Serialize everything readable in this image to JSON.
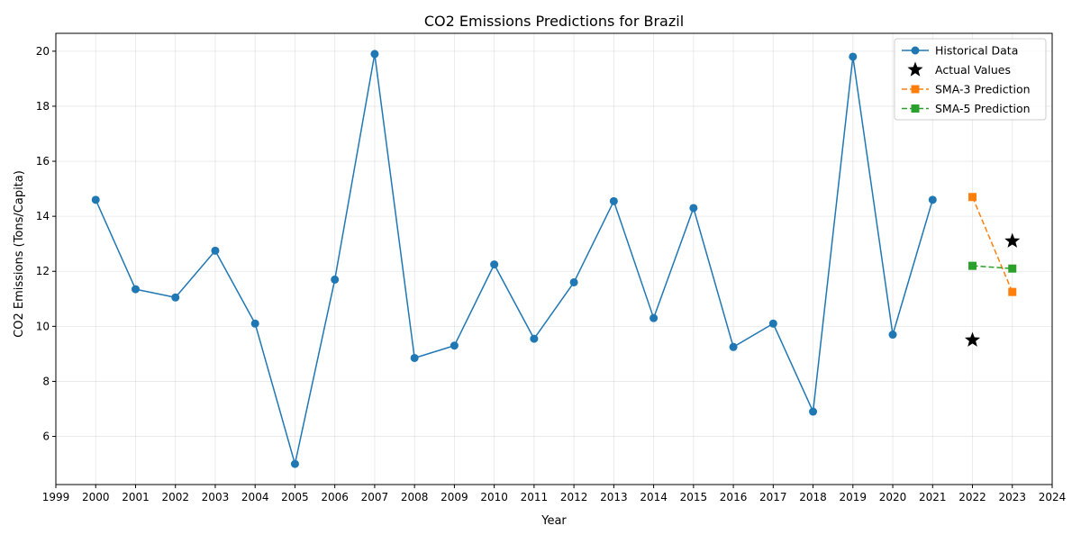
{
  "chart_data": {
    "type": "line",
    "title": "CO2 Emissions Predictions for Brazil",
    "xlabel": "Year",
    "ylabel": "CO2 Emissions (Tons/Capita)",
    "xlim": [
      1999,
      2024
    ],
    "ylim": [
      4.25,
      20.65
    ],
    "x_ticks": [
      1999,
      2000,
      2001,
      2002,
      2003,
      2004,
      2005,
      2006,
      2007,
      2008,
      2009,
      2010,
      2011,
      2012,
      2013,
      2014,
      2015,
      2016,
      2017,
      2018,
      2019,
      2020,
      2021,
      2022,
      2023,
      2024
    ],
    "y_ticks": [
      6,
      8,
      10,
      12,
      14,
      16,
      18,
      20
    ],
    "grid": true,
    "legend_position": "top-right",
    "series": [
      {
        "name": "Historical Data",
        "style": "line-circle",
        "color": "#1f77b4",
        "x": [
          2000,
          2001,
          2002,
          2003,
          2004,
          2005,
          2006,
          2007,
          2008,
          2009,
          2010,
          2011,
          2012,
          2013,
          2014,
          2015,
          2016,
          2017,
          2018,
          2019,
          2020,
          2021
        ],
        "y": [
          14.6,
          11.35,
          11.05,
          12.75,
          10.1,
          5.0,
          11.7,
          19.9,
          8.85,
          9.3,
          12.25,
          9.55,
          11.6,
          14.55,
          10.3,
          14.3,
          9.25,
          10.1,
          6.9,
          19.8,
          9.7,
          14.6
        ]
      },
      {
        "name": "Actual Values",
        "style": "star",
        "color": "#000000",
        "x": [
          2022,
          2023
        ],
        "y": [
          9.5,
          13.1
        ]
      },
      {
        "name": "SMA-3 Prediction",
        "style": "dashed-square",
        "color": "#ff7f0e",
        "x": [
          2022,
          2023
        ],
        "y": [
          14.7,
          11.25
        ]
      },
      {
        "name": "SMA-5 Prediction",
        "style": "dashed-square",
        "color": "#2ca02c",
        "x": [
          2022,
          2023
        ],
        "y": [
          12.2,
          12.1
        ]
      }
    ]
  }
}
